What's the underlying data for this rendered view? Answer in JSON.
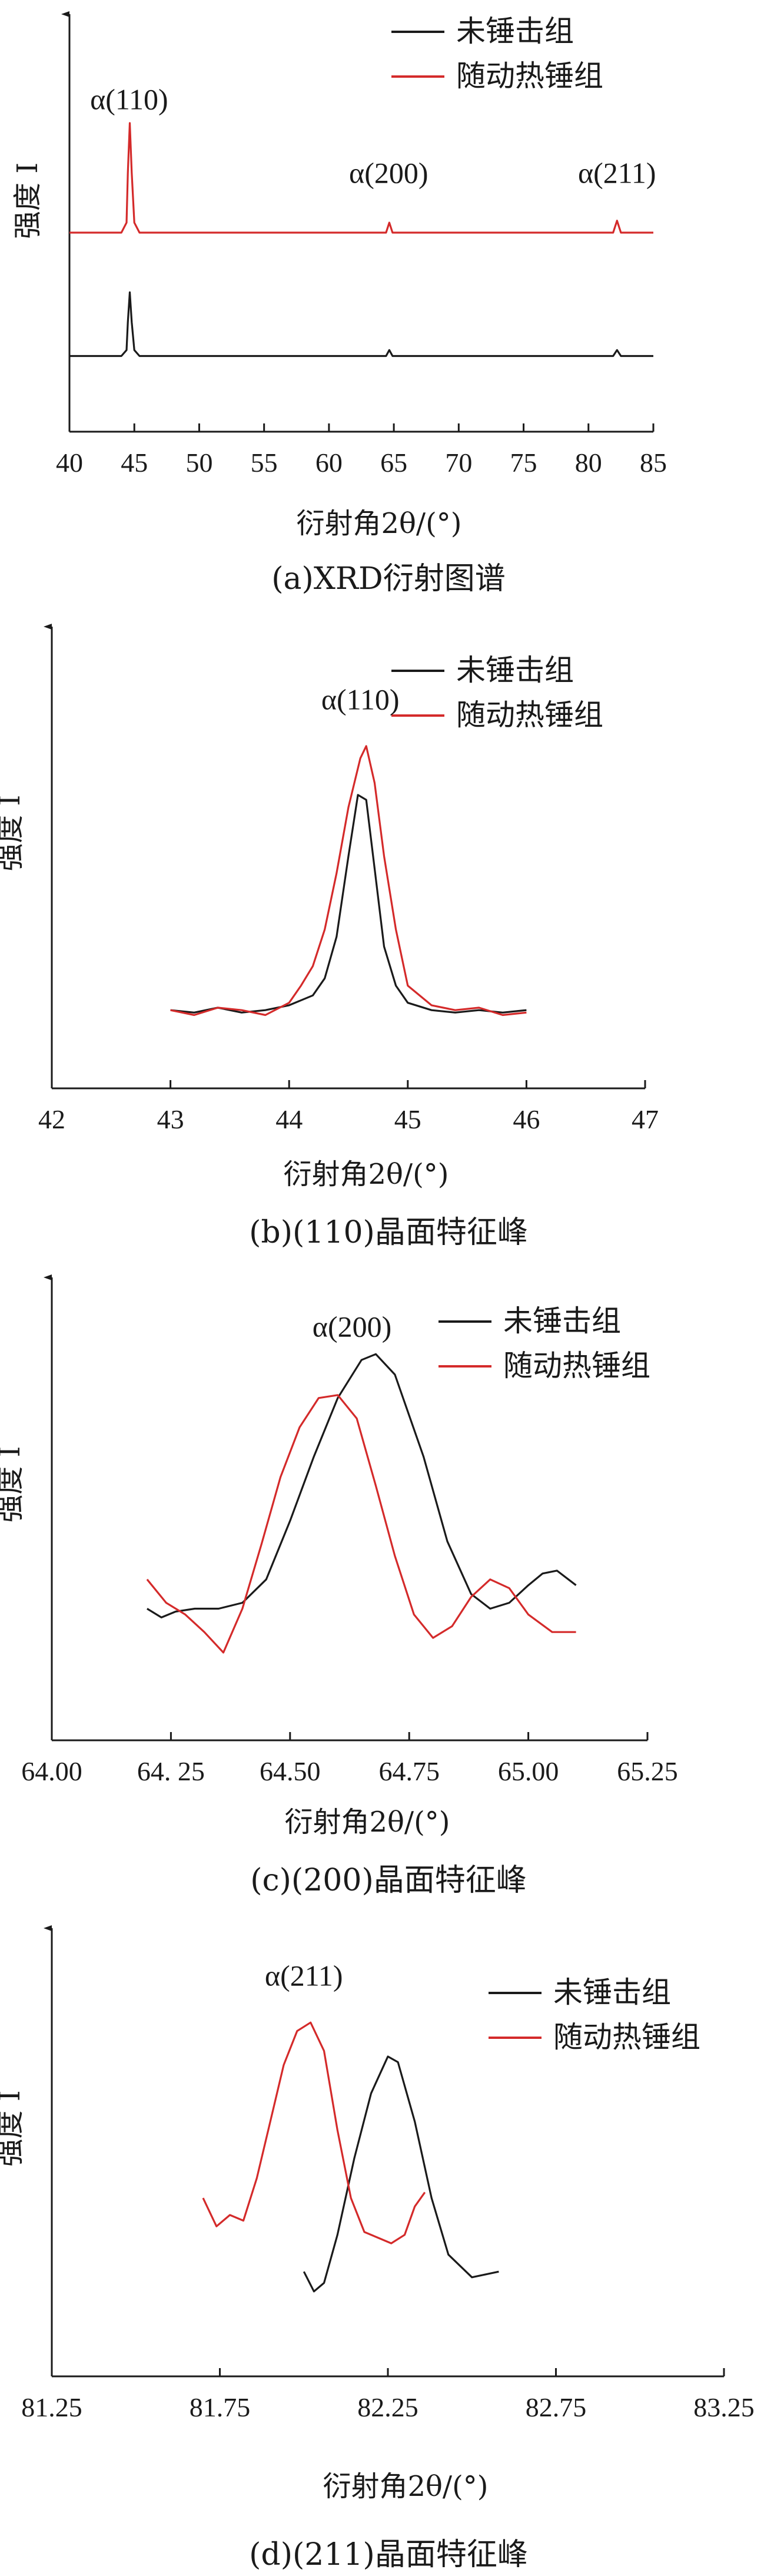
{
  "colors": {
    "untreated": "#1a1a1a",
    "hammered": "#d42a2a",
    "axis": "#1a1a1a"
  },
  "chart_data": [
    {
      "type": "line",
      "caption": "(a)XRD衍射图谱",
      "xlabel": "衍射角2θ/(°)",
      "ylabel": "强度 I",
      "xlim": [
        40,
        85
      ],
      "xticks": [
        "40",
        "45",
        "50",
        "55",
        "60",
        "65",
        "70",
        "75",
        "80",
        "85"
      ],
      "legend": [
        "未锤击组",
        "随动热锤组"
      ],
      "legend_position": "top-right",
      "annotations": [
        {
          "text": "α(110)",
          "x": 44.6,
          "y": 1.62
        },
        {
          "text": "α(200)",
          "x": 64.6,
          "y": 1.25
        },
        {
          "text": "α(211)",
          "x": 82.2,
          "y": 1.25
        }
      ],
      "series": [
        {
          "name": "随动热锤组",
          "x": [
            40,
            44.0,
            44.4,
            44.5,
            44.65,
            44.8,
            45.0,
            45.4,
            47,
            50,
            55,
            60,
            64.4,
            64.65,
            64.9,
            70,
            75,
            81.9,
            82.2,
            82.5,
            85
          ],
          "y": [
            1.0,
            1.0,
            1.05,
            1.3,
            1.55,
            1.3,
            1.05,
            1.0,
            1.0,
            1.0,
            1.0,
            1.0,
            1.0,
            1.05,
            1.0,
            1.0,
            1.0,
            1.0,
            1.06,
            1.0,
            1.0
          ]
        },
        {
          "name": "未锤击组",
          "x": [
            40,
            44.0,
            44.4,
            44.5,
            44.65,
            44.8,
            45.0,
            45.4,
            47,
            50,
            55,
            60,
            64.4,
            64.65,
            64.9,
            70,
            75,
            81.9,
            82.2,
            82.5,
            85
          ],
          "y": [
            0.38,
            0.38,
            0.41,
            0.55,
            0.7,
            0.55,
            0.41,
            0.38,
            0.38,
            0.38,
            0.38,
            0.38,
            0.38,
            0.41,
            0.38,
            0.38,
            0.38,
            0.38,
            0.41,
            0.38,
            0.38
          ]
        }
      ]
    },
    {
      "type": "line",
      "caption": "(b)(110)晶面特征峰",
      "xlabel": "衍射角2θ/(°)",
      "ylabel": "强度 I",
      "xlim": [
        42,
        47
      ],
      "xticks": [
        "42",
        "43",
        "44",
        "45",
        "46",
        "47"
      ],
      "legend": [
        "未锤击组",
        "随动热锤组"
      ],
      "legend_position": "top-right",
      "annotations": [
        {
          "text": "α(110)",
          "x": 44.6,
          "y": 1.25
        }
      ],
      "series": [
        {
          "name": "未锤击组",
          "x": [
            43.0,
            43.2,
            43.4,
            43.6,
            43.8,
            44.0,
            44.2,
            44.3,
            44.4,
            44.5,
            44.58,
            44.65,
            44.72,
            44.8,
            44.9,
            45.0,
            45.2,
            45.4,
            45.6,
            45.8,
            46.0
          ],
          "y": [
            0.02,
            0.01,
            0.03,
            0.01,
            0.02,
            0.04,
            0.08,
            0.15,
            0.32,
            0.65,
            0.9,
            0.88,
            0.6,
            0.28,
            0.12,
            0.05,
            0.02,
            0.01,
            0.02,
            0.01,
            0.02
          ]
        },
        {
          "name": "随动热锤组",
          "x": [
            43.0,
            43.2,
            43.4,
            43.6,
            43.8,
            44.0,
            44.1,
            44.2,
            44.3,
            44.4,
            44.5,
            44.6,
            44.65,
            44.72,
            44.8,
            44.9,
            45.0,
            45.2,
            45.4,
            45.6,
            45.8,
            46.0
          ],
          "y": [
            0.02,
            0.0,
            0.03,
            0.02,
            0.0,
            0.05,
            0.12,
            0.2,
            0.35,
            0.58,
            0.85,
            1.05,
            1.1,
            0.95,
            0.65,
            0.35,
            0.12,
            0.04,
            0.02,
            0.03,
            0.0,
            0.01
          ]
        }
      ]
    },
    {
      "type": "line",
      "caption": "(c)(200)晶面特征峰",
      "xlabel": "衍射角2θ/(°)",
      "ylabel": "强度 I",
      "xlim": [
        64.0,
        65.25
      ],
      "xticks": [
        "64.00",
        "64. 25",
        "64.50",
        "64.75",
        "65.00",
        "65.25"
      ],
      "legend": [
        "未锤击组",
        "随动热锤组"
      ],
      "legend_position": "top-right",
      "annotations": [
        {
          "text": "α(200)",
          "x": 64.63,
          "y": 1.13
        }
      ],
      "series": [
        {
          "name": "未锤击组",
          "x": [
            64.2,
            64.23,
            64.26,
            64.3,
            64.35,
            64.4,
            64.45,
            64.5,
            64.55,
            64.6,
            64.65,
            64.68,
            64.72,
            64.78,
            64.83,
            64.88,
            64.92,
            64.96,
            65.0,
            65.03,
            65.06,
            65.1
          ],
          "y": [
            0.2,
            0.17,
            0.19,
            0.2,
            0.2,
            0.22,
            0.3,
            0.5,
            0.72,
            0.92,
            1.05,
            1.07,
            1.0,
            0.72,
            0.43,
            0.25,
            0.2,
            0.22,
            0.28,
            0.32,
            0.33,
            0.28
          ]
        },
        {
          "name": "随动热锤组",
          "x": [
            64.2,
            64.24,
            64.28,
            64.32,
            64.36,
            64.4,
            64.44,
            64.48,
            64.52,
            64.56,
            64.6,
            64.64,
            64.68,
            64.72,
            64.76,
            64.8,
            64.84,
            64.88,
            64.92,
            64.96,
            65.0,
            65.05,
            65.1
          ],
          "y": [
            0.3,
            0.22,
            0.18,
            0.12,
            0.05,
            0.2,
            0.42,
            0.65,
            0.82,
            0.92,
            0.93,
            0.85,
            0.62,
            0.38,
            0.18,
            0.1,
            0.14,
            0.24,
            0.3,
            0.27,
            0.18,
            0.12,
            0.12
          ]
        }
      ]
    },
    {
      "type": "line",
      "caption": "(d)(211)晶面特征峰",
      "xlabel": "衍射角2θ/(°)",
      "ylabel": "强度 I",
      "xlim": [
        81.25,
        83.25
      ],
      "xticks": [
        "81.25",
        "81.75",
        "82.25",
        "82.75",
        "83.25"
      ],
      "legend": [
        "未锤击组",
        "随动热锤组"
      ],
      "legend_position": "top-right",
      "annotations": [
        {
          "text": "α(211)",
          "x": 82.0,
          "y": 1.13
        }
      ],
      "series": [
        {
          "name": "未锤击组",
          "x": [
            82.0,
            82.03,
            82.06,
            82.1,
            82.15,
            82.2,
            82.25,
            82.28,
            82.33,
            82.38,
            82.43,
            82.5,
            82.58
          ],
          "y": [
            0.12,
            0.05,
            0.08,
            0.25,
            0.52,
            0.75,
            0.88,
            0.86,
            0.65,
            0.38,
            0.18,
            0.1,
            0.12
          ]
        },
        {
          "name": "随动热锤组",
          "x": [
            81.7,
            81.74,
            81.78,
            81.82,
            81.86,
            81.9,
            81.94,
            81.98,
            82.02,
            82.06,
            82.1,
            82.14,
            82.18,
            82.22,
            82.26,
            82.3,
            82.33,
            82.36
          ],
          "y": [
            0.38,
            0.28,
            0.32,
            0.3,
            0.45,
            0.65,
            0.85,
            0.97,
            1.0,
            0.9,
            0.62,
            0.38,
            0.26,
            0.24,
            0.22,
            0.25,
            0.35,
            0.4
          ]
        }
      ]
    }
  ]
}
